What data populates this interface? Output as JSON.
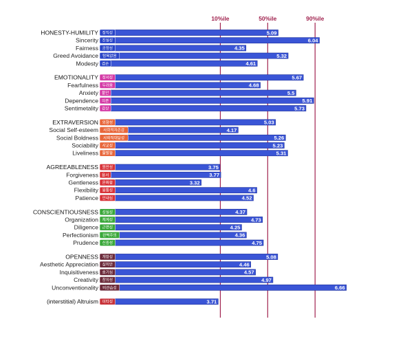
{
  "chart_data": {
    "type": "bar",
    "orientation": "horizontal",
    "x_axis": {
      "reference_value": 1.0,
      "max_value": 6.66
    },
    "percentile_lines": [
      {
        "label": "10%ile",
        "value": 3.76
      },
      {
        "label": "50%ile",
        "value": 4.85
      },
      {
        "label": "90%ile",
        "value": 5.94
      }
    ],
    "groups": [
      {
        "name": "HONESTY-HUMILITY",
        "items": [
          {
            "name": "",
            "tag": "정직성",
            "value": 5.09
          },
          {
            "name": "Sincerity",
            "tag": "진실성",
            "value": 6.04
          },
          {
            "name": "Fairness",
            "tag": "공정성",
            "value": 4.35
          },
          {
            "name": "Greed Avoidance",
            "tag": "탐욕없음",
            "value": 5.32
          },
          {
            "name": "Modesty",
            "tag": "겸손",
            "value": 4.61
          }
        ]
      },
      {
        "name": "EMOTIONALITY",
        "items": [
          {
            "name": "",
            "tag": "정서성",
            "value": 5.67
          },
          {
            "name": "Fearfulness",
            "tag": "두려움",
            "value": 4.68
          },
          {
            "name": "Anxiety",
            "tag": "불안",
            "value": 5.5
          },
          {
            "name": "Dependence",
            "tag": "의존",
            "value": 5.91
          },
          {
            "name": "Sentimetality",
            "tag": "감상",
            "value": 5.73
          }
        ]
      },
      {
        "name": "EXTRAVERSION",
        "items": [
          {
            "name": "",
            "tag": "외향성",
            "value": 5.03
          },
          {
            "name": "Social Self-esteem",
            "tag": "사회적자존감",
            "value": 4.17
          },
          {
            "name": "Social Boldness",
            "tag": "사회적대담성",
            "value": 5.26
          },
          {
            "name": "Sociability",
            "tag": "사교성",
            "value": 5.23
          },
          {
            "name": "Liveliness",
            "tag": "활발함",
            "value": 5.31
          }
        ]
      },
      {
        "name": "AGREEABLENESS",
        "items": [
          {
            "name": "",
            "tag": "원만성",
            "value": 3.75
          },
          {
            "name": "Forgiveness",
            "tag": "용서",
            "value": 3.77
          },
          {
            "name": "Gentleness",
            "tag": "온화함",
            "value": 3.32
          },
          {
            "name": "Flexibility",
            "tag": "융통성",
            "value": 4.6
          },
          {
            "name": "Patience",
            "tag": "인내심",
            "value": 4.52
          }
        ]
      },
      {
        "name": "CONSCIENTIOUSNESS",
        "items": [
          {
            "name": "",
            "tag": "성실성",
            "value": 4.37
          },
          {
            "name": "Organization",
            "tag": "체계성",
            "value": 4.73
          },
          {
            "name": "Diligence",
            "tag": "근면성",
            "value": 4.25
          },
          {
            "name": "Perfectionism",
            "tag": "완벽주의",
            "value": 4.36
          },
          {
            "name": "Prudence",
            "tag": "신중성",
            "value": 4.75
          }
        ]
      },
      {
        "name": "OPENNESS",
        "items": [
          {
            "name": "",
            "tag": "개방성",
            "value": 5.08
          },
          {
            "name": "Aesthetic Appreciation",
            "tag": "심미안",
            "value": 4.46
          },
          {
            "name": "Inquisitiveness",
            "tag": "호기심",
            "value": 4.57
          },
          {
            "name": "Creativity",
            "tag": "창의성",
            "value": 4.97
          },
          {
            "name": "Unconventionality",
            "tag": "비관습성",
            "value": 6.66
          }
        ]
      },
      {
        "name": "(interstitial) Altruism",
        "items": [
          {
            "name": "",
            "tag": "이타성",
            "value": 3.71
          }
        ]
      }
    ],
    "colors": {
      "bar": "#3a55d6",
      "bar_edge": "#1d2f9a",
      "percentile_line": "#a0224e",
      "tag_by_group": [
        "#2a45c8",
        "#d43aa6",
        "#e8663a",
        "#d8343a",
        "#3aa83a",
        "#6b2a3a",
        "#c8343a"
      ]
    }
  }
}
